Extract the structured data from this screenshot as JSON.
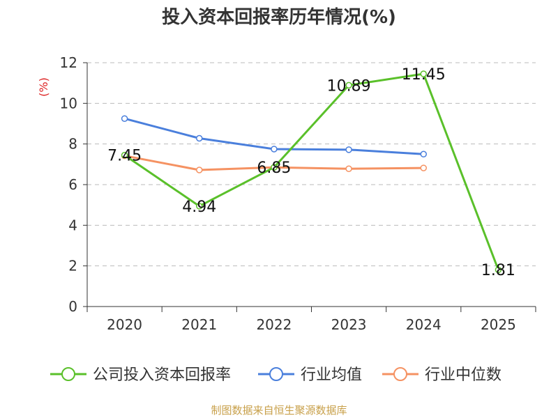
{
  "title": "投入资本回报率历年情况(%)",
  "source": "制图数据来自恒生聚源数据库",
  "chart_data": {
    "type": "line",
    "categories": [
      "2020",
      "2021",
      "2022",
      "2023",
      "2024",
      "2025"
    ],
    "ylabel": "(%)",
    "ylim": [
      0,
      12
    ],
    "yticks": [
      0,
      2,
      4,
      6,
      8,
      10,
      12
    ],
    "grid": true,
    "legend_position": "bottom",
    "series": [
      {
        "name": "公司投入资本回报率",
        "color": "#5ac02a",
        "values": [
          7.45,
          4.94,
          6.85,
          10.89,
          11.45,
          1.81
        ],
        "labels": [
          "7.45",
          "4.94",
          "6.85",
          "10.89",
          "11.45",
          "1.81"
        ]
      },
      {
        "name": "行业均值",
        "color": "#4a7fdc",
        "values": [
          9.25,
          8.28,
          7.75,
          7.72,
          7.5,
          null
        ]
      },
      {
        "name": "行业中位数",
        "color": "#f59262",
        "values": [
          7.42,
          6.72,
          6.85,
          6.78,
          6.82,
          null
        ]
      }
    ]
  }
}
